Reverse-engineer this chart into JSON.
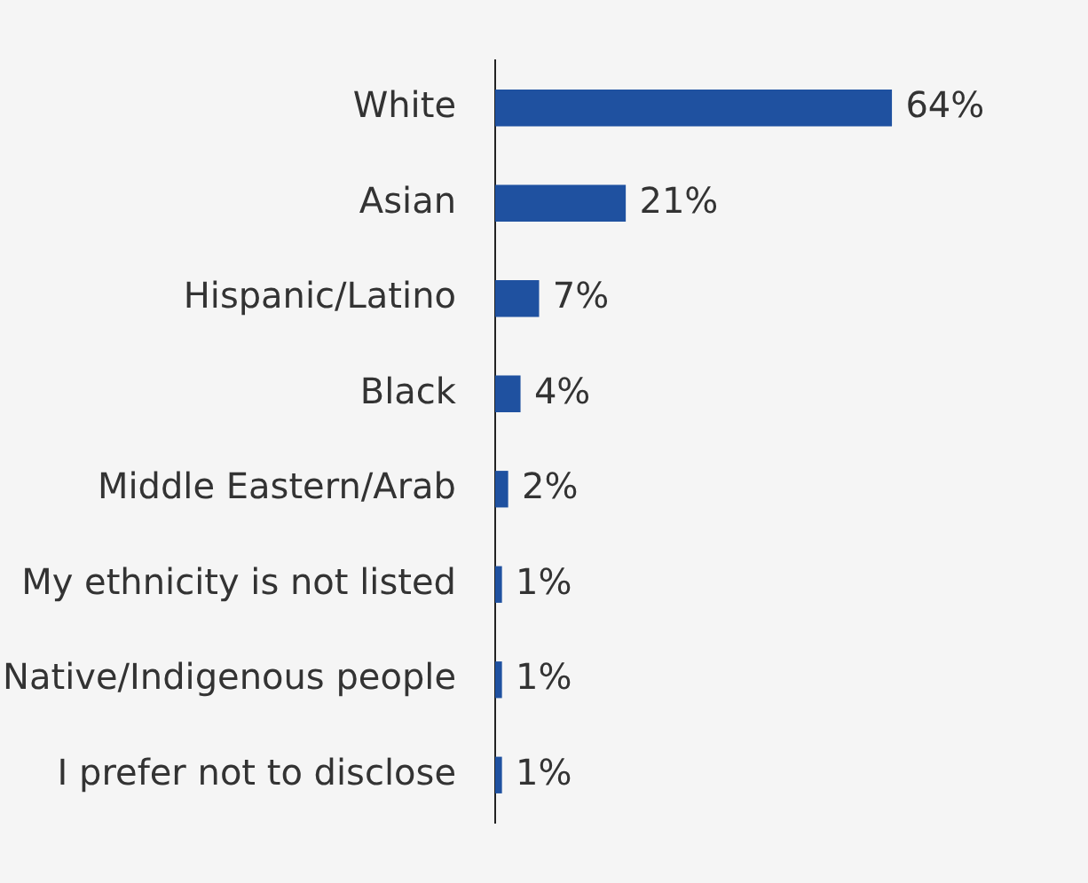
{
  "chart_data": {
    "type": "bar",
    "orientation": "horizontal",
    "categories": [
      "White",
      "Asian",
      "Hispanic/Latino",
      "Black",
      "Middle Eastern/Arab",
      "My ethnicity is not listed",
      "Native/Indigenous people",
      "I prefer not to disclose"
    ],
    "values": [
      64,
      21,
      7,
      4,
      2,
      1,
      1,
      1
    ],
    "value_labels": [
      "64%",
      "21%",
      "7%",
      "4%",
      "2%",
      "1%",
      "1%",
      "1%"
    ],
    "color": "#1f51a0",
    "grid": false,
    "legend": false
  }
}
